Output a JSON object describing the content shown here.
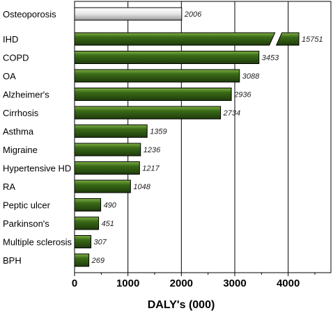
{
  "chart_data": {
    "type": "bar",
    "orientation": "horizontal",
    "title": "",
    "xlabel": "DALY's (000)",
    "ylabel": "",
    "xlim": [
      0,
      4800
    ],
    "xticks": [
      0,
      1000,
      2000,
      3000,
      4000
    ],
    "xtick_labels": [
      "0",
      "1000",
      "2000",
      "3000",
      "4000"
    ],
    "grid": true,
    "categories": [
      "Osteoporosis",
      "IHD",
      "COPD",
      "OA",
      "Alzheimer's",
      "Cirrhosis",
      "Asthma",
      "Migraine",
      "Hypertensive HD",
      "RA",
      "Peptic ulcer",
      "Parkinson's",
      "Multiple sclerosis",
      "BPH"
    ],
    "values": [
      2006,
      15751,
      3453,
      3088,
      2936,
      2734,
      1359,
      1236,
      1217,
      1048,
      490,
      451,
      307,
      269
    ],
    "value_labels": [
      "2006",
      "15751",
      "3453",
      "3088",
      "2936",
      "2734",
      "1359",
      "1236",
      "1217",
      "1048",
      "490",
      "451",
      "307",
      "269"
    ],
    "broken_bars": [
      "IHD"
    ],
    "highlight_category": "Osteoporosis",
    "colors": {
      "bar_dark": "#1f3b0c",
      "bar_mid": "#3a6b17",
      "bar_light": "#7fb044",
      "highlight_dark": "#9a9a9a",
      "highlight_light": "#ffffff"
    }
  }
}
